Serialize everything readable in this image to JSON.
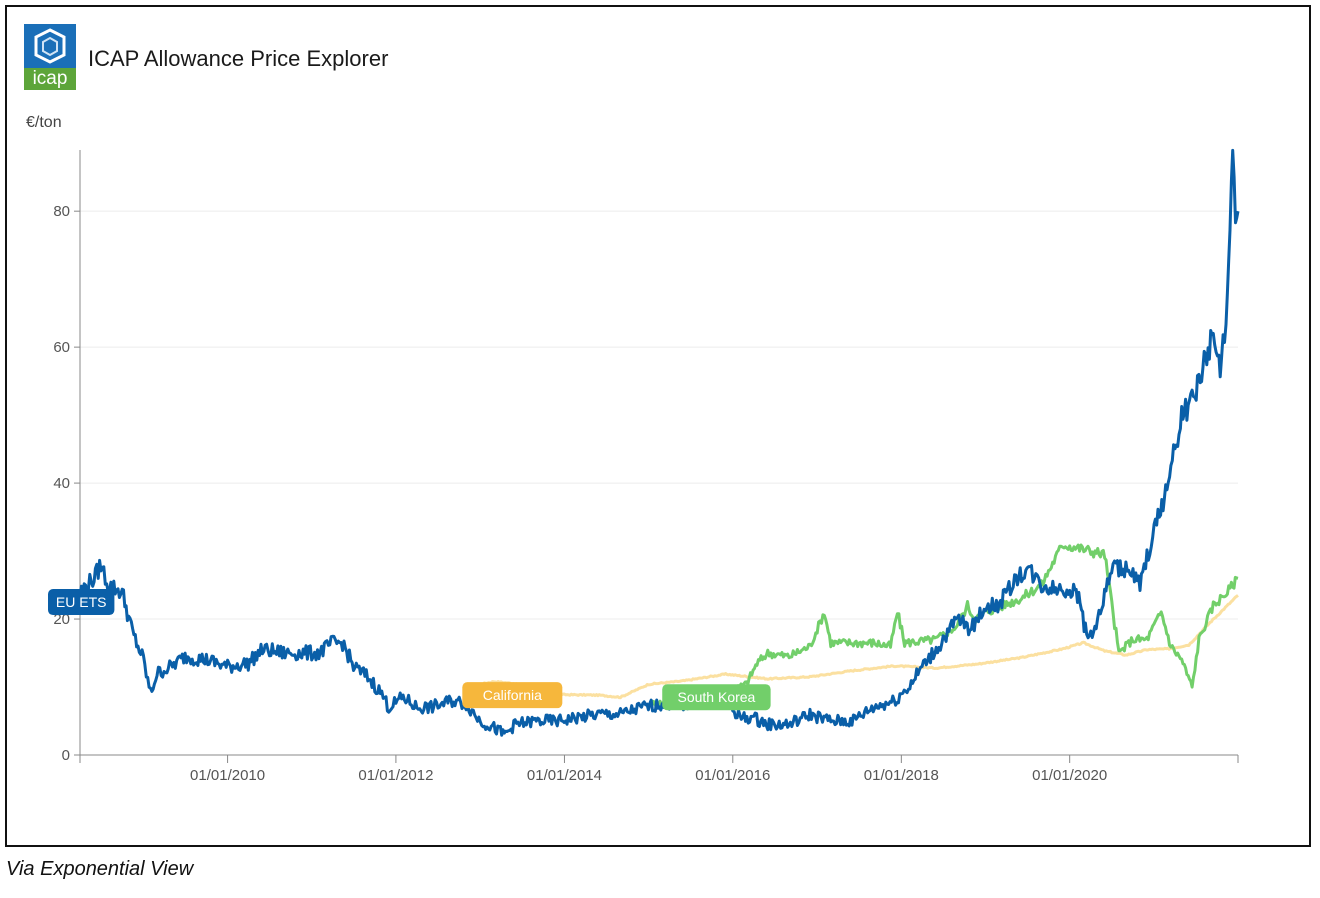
{
  "header": {
    "logo_text": "icap",
    "title": "ICAP Allowance Price Explorer"
  },
  "caption": "Via Exponential View",
  "colors": {
    "eu_ets": "#0a5fa8",
    "california": "#fbe0a0",
    "california_label": "#f6b73c",
    "south_korea": "#72cf6a",
    "grid": "#ececec",
    "axis": "#888888",
    "logo_blue": "#1a6fb8",
    "logo_green": "#5da53a"
  },
  "chart_data": {
    "type": "line",
    "title": "ICAP Allowance Price Explorer",
    "ylabel": "€/ton",
    "xlabel": "",
    "xlim": [
      "2008-04-01",
      "2021-12-31"
    ],
    "ylim": [
      0,
      89
    ],
    "x_ticks": [
      "01/01/2010",
      "01/01/2012",
      "01/01/2014",
      "01/01/2016",
      "01/01/2018",
      "01/01/2020"
    ],
    "y_ticks": [
      0,
      20,
      40,
      60,
      80
    ],
    "grid": "horizontal",
    "legend": "inline-labels",
    "series": [
      {
        "name": "EU ETS",
        "label_at": [
          "2008-04-01",
          22.5
        ],
        "points": [
          [
            "2008-04-01",
            24
          ],
          [
            "2008-06-01",
            26
          ],
          [
            "2008-07-01",
            28
          ],
          [
            "2008-08-01",
            25
          ],
          [
            "2008-10-01",
            24
          ],
          [
            "2008-11-15",
            18
          ],
          [
            "2009-01-01",
            14
          ],
          [
            "2009-02-01",
            9
          ],
          [
            "2009-03-01",
            12
          ],
          [
            "2009-05-01",
            13
          ],
          [
            "2009-07-01",
            14.5
          ],
          [
            "2009-10-01",
            14
          ],
          [
            "2010-01-01",
            13
          ],
          [
            "2010-04-01",
            13.5
          ],
          [
            "2010-06-01",
            15.5
          ],
          [
            "2010-09-01",
            15
          ],
          [
            "2010-12-01",
            15
          ],
          [
            "2011-02-01",
            15
          ],
          [
            "2011-04-01",
            16.5
          ],
          [
            "2011-05-15",
            16.5
          ],
          [
            "2011-07-01",
            13
          ],
          [
            "2011-09-01",
            11.5
          ],
          [
            "2011-11-01",
            9
          ],
          [
            "2011-12-01",
            7
          ],
          [
            "2012-02-01",
            8.5
          ],
          [
            "2012-04-01",
            7
          ],
          [
            "2012-06-01",
            7
          ],
          [
            "2012-09-01",
            8
          ],
          [
            "2012-11-01",
            7.5
          ],
          [
            "2013-01-01",
            5
          ],
          [
            "2013-03-01",
            4
          ],
          [
            "2013-04-15",
            3
          ],
          [
            "2013-06-01",
            4.5
          ],
          [
            "2013-09-01",
            5
          ],
          [
            "2013-12-01",
            5
          ],
          [
            "2014-03-01",
            5.5
          ],
          [
            "2014-06-01",
            6
          ],
          [
            "2014-09-01",
            6
          ],
          [
            "2014-12-01",
            7
          ],
          [
            "2015-03-01",
            7.5
          ],
          [
            "2015-06-01",
            7.5
          ],
          [
            "2015-09-01",
            8
          ],
          [
            "2015-12-01",
            8
          ],
          [
            "2016-02-01",
            5.5
          ],
          [
            "2016-04-01",
            5.5
          ],
          [
            "2016-06-01",
            4.5
          ],
          [
            "2016-09-01",
            4.5
          ],
          [
            "2016-12-01",
            6
          ],
          [
            "2017-03-01",
            5
          ],
          [
            "2017-06-01",
            5
          ],
          [
            "2017-09-01",
            7
          ],
          [
            "2017-12-01",
            8
          ],
          [
            "2018-02-01",
            10
          ],
          [
            "2018-04-01",
            13
          ],
          [
            "2018-06-01",
            15.5
          ],
          [
            "2018-09-01",
            20
          ],
          [
            "2018-11-01",
            18.5
          ],
          [
            "2019-01-01",
            22
          ],
          [
            "2019-03-01",
            22
          ],
          [
            "2019-05-01",
            25.5
          ],
          [
            "2019-07-01",
            27.5
          ],
          [
            "2019-09-01",
            25
          ],
          [
            "2019-11-01",
            24.5
          ],
          [
            "2020-01-01",
            24.5
          ],
          [
            "2020-02-15",
            23
          ],
          [
            "2020-03-15",
            17
          ],
          [
            "2020-05-01",
            19.5
          ],
          [
            "2020-07-01",
            27.5
          ],
          [
            "2020-09-01",
            27.5
          ],
          [
            "2020-11-01",
            25
          ],
          [
            "2021-01-01",
            33
          ],
          [
            "2021-02-15",
            38
          ],
          [
            "2021-03-15",
            42
          ],
          [
            "2021-05-01",
            50
          ],
          [
            "2021-06-15",
            52
          ],
          [
            "2021-08-01",
            57
          ],
          [
            "2021-09-15",
            62
          ],
          [
            "2021-10-15",
            56
          ],
          [
            "2021-11-15",
            67
          ],
          [
            "2021-12-08",
            88
          ],
          [
            "2021-12-20",
            77
          ],
          [
            "2021-12-31",
            80
          ]
        ]
      },
      {
        "name": "California",
        "label_at": [
          "2012-10-15",
          8.8
        ],
        "points": [
          [
            "2012-11-15",
            10.1
          ],
          [
            "2013-03-01",
            10.8
          ],
          [
            "2013-06-01",
            10.5
          ],
          [
            "2013-09-01",
            9.2
          ],
          [
            "2013-12-01",
            8.9
          ],
          [
            "2014-06-01",
            8.8
          ],
          [
            "2014-09-01",
            8.5
          ],
          [
            "2015-01-01",
            10.4
          ],
          [
            "2015-06-01",
            10.9
          ],
          [
            "2015-12-01",
            11.9
          ],
          [
            "2016-06-01",
            11.2
          ],
          [
            "2016-12-01",
            11.5
          ],
          [
            "2017-06-01",
            12.4
          ],
          [
            "2017-12-01",
            13.1
          ],
          [
            "2018-06-01",
            12.8
          ],
          [
            "2018-12-01",
            13.4
          ],
          [
            "2019-06-01",
            14.3
          ],
          [
            "2019-12-01",
            15.6
          ],
          [
            "2020-03-01",
            16.5
          ],
          [
            "2020-06-01",
            15.3
          ],
          [
            "2020-09-01",
            14.7
          ],
          [
            "2020-12-01",
            15.5
          ],
          [
            "2021-03-01",
            15.6
          ],
          [
            "2021-06-01",
            16.2
          ],
          [
            "2021-09-01",
            19.5
          ],
          [
            "2021-12-31",
            23.5
          ]
        ]
      },
      {
        "name": "South Korea",
        "label_at": [
          "2015-03-01",
          8.5
        ],
        "points": [
          [
            "2015-01-15",
            7.5
          ],
          [
            "2015-06-01",
            8
          ],
          [
            "2015-12-01",
            9
          ],
          [
            "2016-03-01",
            10.5
          ],
          [
            "2016-04-15",
            13.5
          ],
          [
            "2016-06-01",
            15
          ],
          [
            "2016-09-01",
            14.5
          ],
          [
            "2016-12-01",
            16
          ],
          [
            "2017-02-01",
            21
          ],
          [
            "2017-03-01",
            16.5
          ],
          [
            "2017-06-01",
            16.5
          ],
          [
            "2017-09-01",
            16.5
          ],
          [
            "2017-11-15",
            16
          ],
          [
            "2017-12-15",
            21
          ],
          [
            "2018-01-15",
            16.5
          ],
          [
            "2018-06-01",
            17
          ],
          [
            "2018-09-01",
            19
          ],
          [
            "2018-10-15",
            22
          ],
          [
            "2018-11-15",
            20
          ],
          [
            "2019-01-01",
            21
          ],
          [
            "2019-06-01",
            23
          ],
          [
            "2019-09-01",
            25
          ],
          [
            "2019-12-01",
            31
          ],
          [
            "2020-02-01",
            30.5
          ],
          [
            "2020-06-01",
            29.5
          ],
          [
            "2020-08-01",
            15
          ],
          [
            "2020-10-01",
            17
          ],
          [
            "2020-12-01",
            17
          ],
          [
            "2021-02-01",
            21
          ],
          [
            "2021-03-15",
            16
          ],
          [
            "2021-05-01",
            14
          ],
          [
            "2021-06-15",
            10
          ],
          [
            "2021-07-15",
            17
          ],
          [
            "2021-09-15",
            22
          ],
          [
            "2021-11-15",
            24
          ],
          [
            "2021-12-31",
            26
          ]
        ]
      }
    ]
  }
}
